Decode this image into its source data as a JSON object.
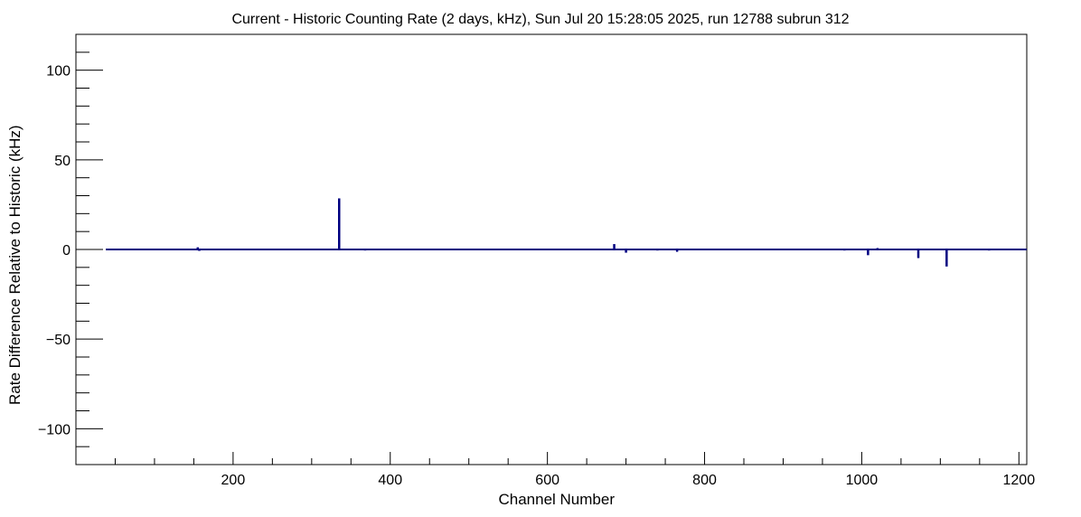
{
  "chart_data": {
    "type": "bar",
    "title": "Current - Historic Counting Rate (2 days, kHz), Sun Jul 20 15:28:05 2025, run 12788 subrun 312",
    "xlabel": "Channel Number",
    "ylabel": "Rate Difference Relative to Historic (kHz)",
    "xlim": [
      0,
      1210
    ],
    "ylim": [
      -120,
      120
    ],
    "x_ticks": [
      200,
      400,
      600,
      800,
      1000,
      1200
    ],
    "y_ticks": [
      -100,
      -50,
      0,
      50,
      100
    ],
    "x_tick_labels": [
      "200",
      "400",
      "600",
      "800",
      "1000",
      "1200"
    ],
    "y_tick_labels": [
      "−100",
      "−50",
      "0",
      "50",
      "100"
    ],
    "series": [
      {
        "color": "#000080",
        "baseline_range": [
          38,
          1210
        ],
        "points": [
          {
            "x": 155,
            "y": 1.2
          },
          {
            "x": 157,
            "y": -0.8
          },
          {
            "x": 172,
            "y": 0.5
          },
          {
            "x": 215,
            "y": -0.5
          },
          {
            "x": 288,
            "y": -0.4
          },
          {
            "x": 335,
            "y": 28.5
          },
          {
            "x": 368,
            "y": -0.6
          },
          {
            "x": 502,
            "y": -0.4
          },
          {
            "x": 548,
            "y": 0.4
          },
          {
            "x": 580,
            "y": -0.4
          },
          {
            "x": 610,
            "y": -0.5
          },
          {
            "x": 637,
            "y": 0.4
          },
          {
            "x": 685,
            "y": 3.0
          },
          {
            "x": 700,
            "y": -1.8
          },
          {
            "x": 740,
            "y": -0.6
          },
          {
            "x": 765,
            "y": -1.3
          },
          {
            "x": 978,
            "y": -0.6
          },
          {
            "x": 1008,
            "y": -3.2
          },
          {
            "x": 1020,
            "y": 0.8
          },
          {
            "x": 1033,
            "y": -0.5
          },
          {
            "x": 1072,
            "y": -4.8
          },
          {
            "x": 1108,
            "y": -9.5
          },
          {
            "x": 1162,
            "y": -0.6
          }
        ]
      }
    ]
  }
}
